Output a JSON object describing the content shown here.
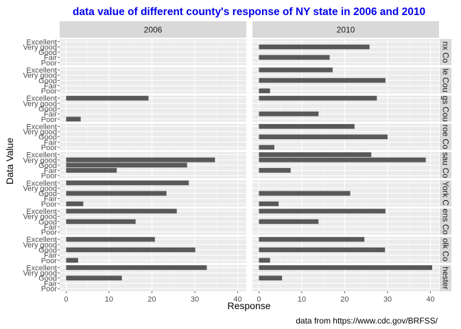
{
  "chart_data": {
    "type": "bar",
    "orientation": "horizontal",
    "title": "data value of different county's response of NY state in 2006 and 2010",
    "title_color": "#0000ee",
    "xlabel": "Response",
    "ylabel": "Data Value",
    "caption": "data from https://www.cdc.gov/BRFSS/",
    "xlim": [
      -1.5,
      42
    ],
    "xticks": [
      0,
      10,
      20,
      30,
      40
    ],
    "categories": [
      "Excellent",
      "Very good",
      "Good",
      "Fair",
      "Poor"
    ],
    "facet_columns": [
      "2006",
      "2010"
    ],
    "facet_rows": [
      "nx Co",
      "le Cou",
      "gs Cou",
      "roe Co",
      "sau Co",
      "York C",
      "ens Co",
      "olk Co",
      "hester"
    ],
    "bar_color": "#595959",
    "panel_background": "#ebebeb",
    "strip_background": "#d9d9d9",
    "grid": true,
    "panels": [
      {
        "row": 0,
        "col": 0,
        "values": [
          null,
          null,
          null,
          null,
          null
        ]
      },
      {
        "row": 0,
        "col": 1,
        "values": [
          null,
          25.8,
          null,
          16.5,
          null
        ]
      },
      {
        "row": 1,
        "col": 0,
        "values": [
          null,
          null,
          null,
          null,
          null
        ]
      },
      {
        "row": 1,
        "col": 1,
        "values": [
          17.2,
          null,
          29.5,
          null,
          2.6
        ]
      },
      {
        "row": 2,
        "col": 0,
        "values": [
          19.2,
          null,
          null,
          null,
          3.4
        ]
      },
      {
        "row": 2,
        "col": 1,
        "values": [
          27.5,
          null,
          null,
          13.9,
          null
        ]
      },
      {
        "row": 3,
        "col": 0,
        "values": [
          null,
          null,
          null,
          null,
          null
        ]
      },
      {
        "row": 3,
        "col": 1,
        "values": [
          22.3,
          null,
          30.0,
          null,
          3.6
        ]
      },
      {
        "row": 4,
        "col": 0,
        "values": [
          null,
          34.7,
          28.2,
          11.8,
          null
        ]
      },
      {
        "row": 4,
        "col": 1,
        "values": [
          26.2,
          38.9,
          null,
          7.4,
          null
        ]
      },
      {
        "row": 5,
        "col": 0,
        "values": [
          28.6,
          null,
          23.4,
          null,
          4.0
        ]
      },
      {
        "row": 5,
        "col": 1,
        "values": [
          null,
          null,
          21.3,
          null,
          4.6
        ]
      },
      {
        "row": 6,
        "col": 0,
        "values": [
          25.8,
          null,
          16.2,
          null,
          null
        ]
      },
      {
        "row": 6,
        "col": 1,
        "values": [
          29.5,
          null,
          13.9,
          null,
          null
        ]
      },
      {
        "row": 7,
        "col": 0,
        "values": [
          20.7,
          null,
          30.1,
          null,
          2.8
        ]
      },
      {
        "row": 7,
        "col": 1,
        "values": [
          24.6,
          null,
          29.4,
          null,
          2.6
        ]
      },
      {
        "row": 8,
        "col": 0,
        "values": [
          32.8,
          null,
          13.0,
          null,
          null
        ]
      },
      {
        "row": 8,
        "col": 1,
        "values": [
          40.4,
          null,
          5.4,
          null,
          null
        ]
      }
    ]
  }
}
